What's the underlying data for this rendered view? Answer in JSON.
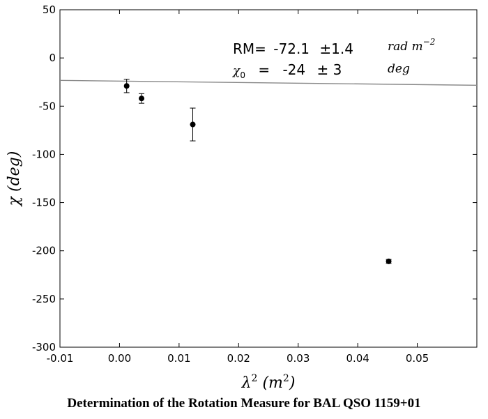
{
  "chart_data": {
    "type": "scatter",
    "xlabel": "λ² (m²)",
    "ylabel": "χ (deg)",
    "xlim": [
      -0.01,
      0.06
    ],
    "ylim": [
      -300,
      50
    ],
    "xticks": [
      -0.01,
      0.0,
      0.01,
      0.02,
      0.03,
      0.04,
      0.05
    ],
    "xtick_labels": [
      "-0.01",
      "0.00",
      "0.01",
      "0.02",
      "0.03",
      "0.04",
      "0.05"
    ],
    "yticks": [
      50,
      0,
      -50,
      -100,
      -150,
      -200,
      -250,
      -300
    ],
    "ytick_labels": [
      "50",
      "0",
      "-50",
      "-100",
      "-150",
      "-200",
      "-250",
      "-300"
    ],
    "grid": false,
    "points": [
      {
        "x": 0.0012,
        "y": -29,
        "err": 7
      },
      {
        "x": 0.0037,
        "y": -42,
        "err": 5
      },
      {
        "x": 0.0123,
        "y": -69,
        "err": 17
      },
      {
        "x": 0.0452,
        "y": -211,
        "err": 2
      }
    ],
    "fit_line": {
      "slope": -72.1,
      "intercept": -24
    },
    "annotation": {
      "rm_label": "RM=",
      "rm_value": "-72.1",
      "rm_pm": "±1.4",
      "rm_unit": "rad m",
      "rm_unit_exp": "−2",
      "chi_label": "χ",
      "chi_sub": "0",
      "chi_eq": "=",
      "chi_value": "-24",
      "chi_pm": "± 3",
      "chi_unit": "deg"
    }
  },
  "caption": "Determination of the Rotation Measure for BAL QSO 1159+01"
}
